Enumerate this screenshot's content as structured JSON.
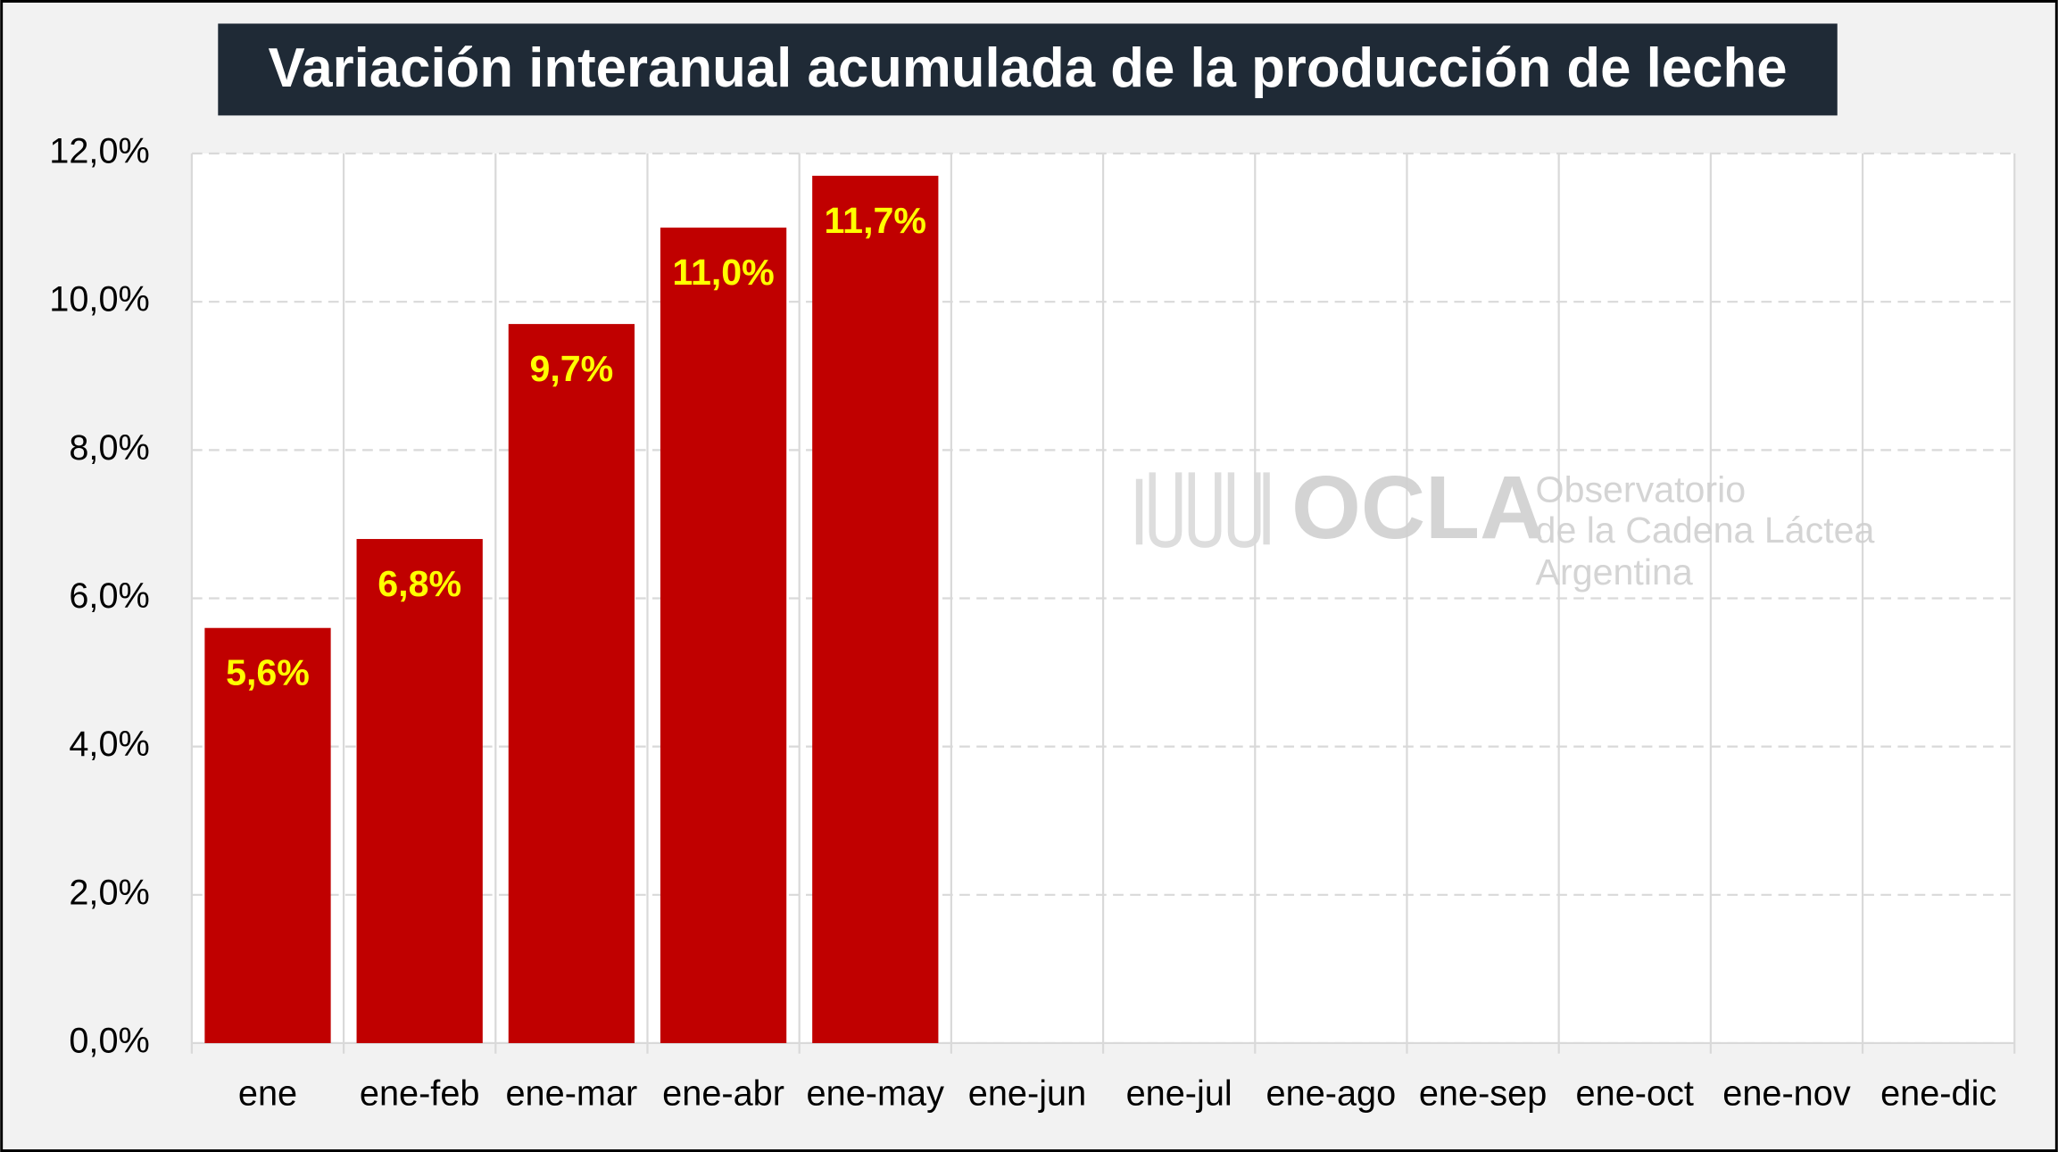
{
  "chart_data": {
    "type": "bar",
    "title": "Variación interanual acumulada de la producción de leche",
    "categories": [
      "ene",
      "ene-feb",
      "ene-mar",
      "ene-abr",
      "ene-may",
      "ene-jun",
      "ene-jul",
      "ene-ago",
      "ene-sep",
      "ene-oct",
      "ene-nov",
      "ene-dic"
    ],
    "values": [
      5.6,
      6.8,
      9.7,
      11.0,
      11.7,
      null,
      null,
      null,
      null,
      null,
      null,
      null
    ],
    "value_labels": [
      "5,6%",
      "6,8%",
      "9,7%",
      "11,0%",
      "11,7%",
      null,
      null,
      null,
      null,
      null,
      null,
      null
    ],
    "color": "#c00000",
    "label_color": "#ffff00",
    "ylim": [
      0,
      12
    ],
    "yticks": [
      {
        "value": 0,
        "label": "0,0%"
      },
      {
        "value": 2,
        "label": "2,0%"
      },
      {
        "value": 4,
        "label": "4,0%"
      },
      {
        "value": 6,
        "label": "6,0%"
      },
      {
        "value": 8,
        "label": "8,0%"
      },
      {
        "value": 10,
        "label": "10,0%"
      },
      {
        "value": 12,
        "label": "12,0%"
      }
    ],
    "grid": true
  },
  "watermark": {
    "name": "OCLA",
    "line1": "Observatorio",
    "line2": "de la Cadena Láctea",
    "line3": "Argentina"
  }
}
